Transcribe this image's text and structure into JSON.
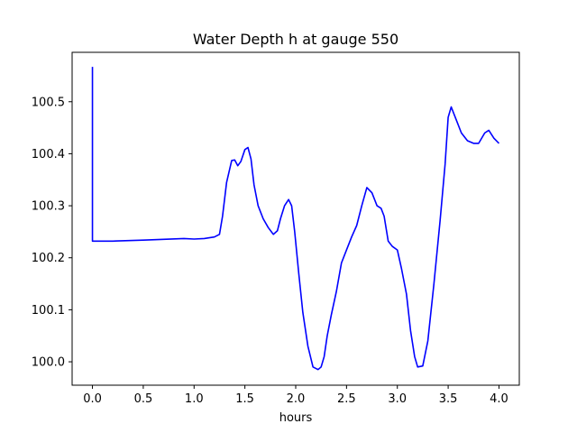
{
  "chart_data": {
    "type": "line",
    "title": "Water Depth h at gauge 550",
    "xlabel": "hours",
    "ylabel": "",
    "xlim": [
      -0.2,
      4.2
    ],
    "ylim": [
      99.955,
      100.595
    ],
    "xticks": [
      0.0,
      0.5,
      1.0,
      1.5,
      2.0,
      2.5,
      3.0,
      3.5,
      4.0
    ],
    "xtick_labels": [
      "0.0",
      "0.5",
      "1.0",
      "1.5",
      "2.0",
      "2.5",
      "3.0",
      "3.5",
      "4.0"
    ],
    "yticks": [
      100.0,
      100.1,
      100.2,
      100.3,
      100.4,
      100.5
    ],
    "ytick_labels": [
      "100.0",
      "100.1",
      "100.2",
      "100.3",
      "100.4",
      "100.5"
    ],
    "grid": false,
    "series": [
      {
        "color": "#0000ff",
        "x": [
          0.0,
          0.0,
          0.0,
          0.2,
          0.5,
          0.9,
          1.0,
          1.1,
          1.2,
          1.25,
          1.28,
          1.32,
          1.37,
          1.4,
          1.43,
          1.46,
          1.5,
          1.53,
          1.56,
          1.59,
          1.63,
          1.68,
          1.73,
          1.78,
          1.82,
          1.85,
          1.89,
          1.93,
          1.96,
          1.99,
          2.03,
          2.07,
          2.12,
          2.17,
          2.22,
          2.25,
          2.28,
          2.31,
          2.35,
          2.4,
          2.45,
          2.5,
          2.55,
          2.6,
          2.65,
          2.7,
          2.75,
          2.8,
          2.84,
          2.87,
          2.91,
          2.95,
          3.0,
          3.04,
          3.09,
          3.13,
          3.17,
          3.2,
          3.25,
          3.3,
          3.36,
          3.42,
          3.47,
          3.5,
          3.53,
          3.57,
          3.63,
          3.69,
          3.75,
          3.8,
          3.83,
          3.86,
          3.9,
          3.95,
          4.0
        ],
        "y": [
          100.567,
          100.25,
          100.232,
          100.232,
          100.234,
          100.237,
          100.236,
          100.237,
          100.24,
          100.245,
          100.28,
          100.345,
          100.387,
          100.388,
          100.377,
          100.385,
          100.408,
          100.412,
          100.39,
          100.34,
          100.3,
          100.275,
          100.258,
          100.245,
          100.252,
          100.275,
          100.3,
          100.312,
          100.3,
          100.25,
          100.17,
          100.095,
          100.03,
          99.99,
          99.985,
          99.99,
          100.01,
          100.05,
          100.09,
          100.135,
          100.19,
          100.215,
          100.24,
          100.262,
          100.3,
          100.335,
          100.325,
          100.3,
          100.295,
          100.28,
          100.232,
          100.222,
          100.215,
          100.18,
          100.13,
          100.06,
          100.01,
          99.99,
          99.992,
          100.04,
          100.15,
          100.27,
          100.38,
          100.47,
          100.49,
          100.47,
          100.44,
          100.425,
          100.42,
          100.42,
          100.43,
          100.44,
          100.445,
          100.43,
          100.42
        ]
      }
    ]
  }
}
